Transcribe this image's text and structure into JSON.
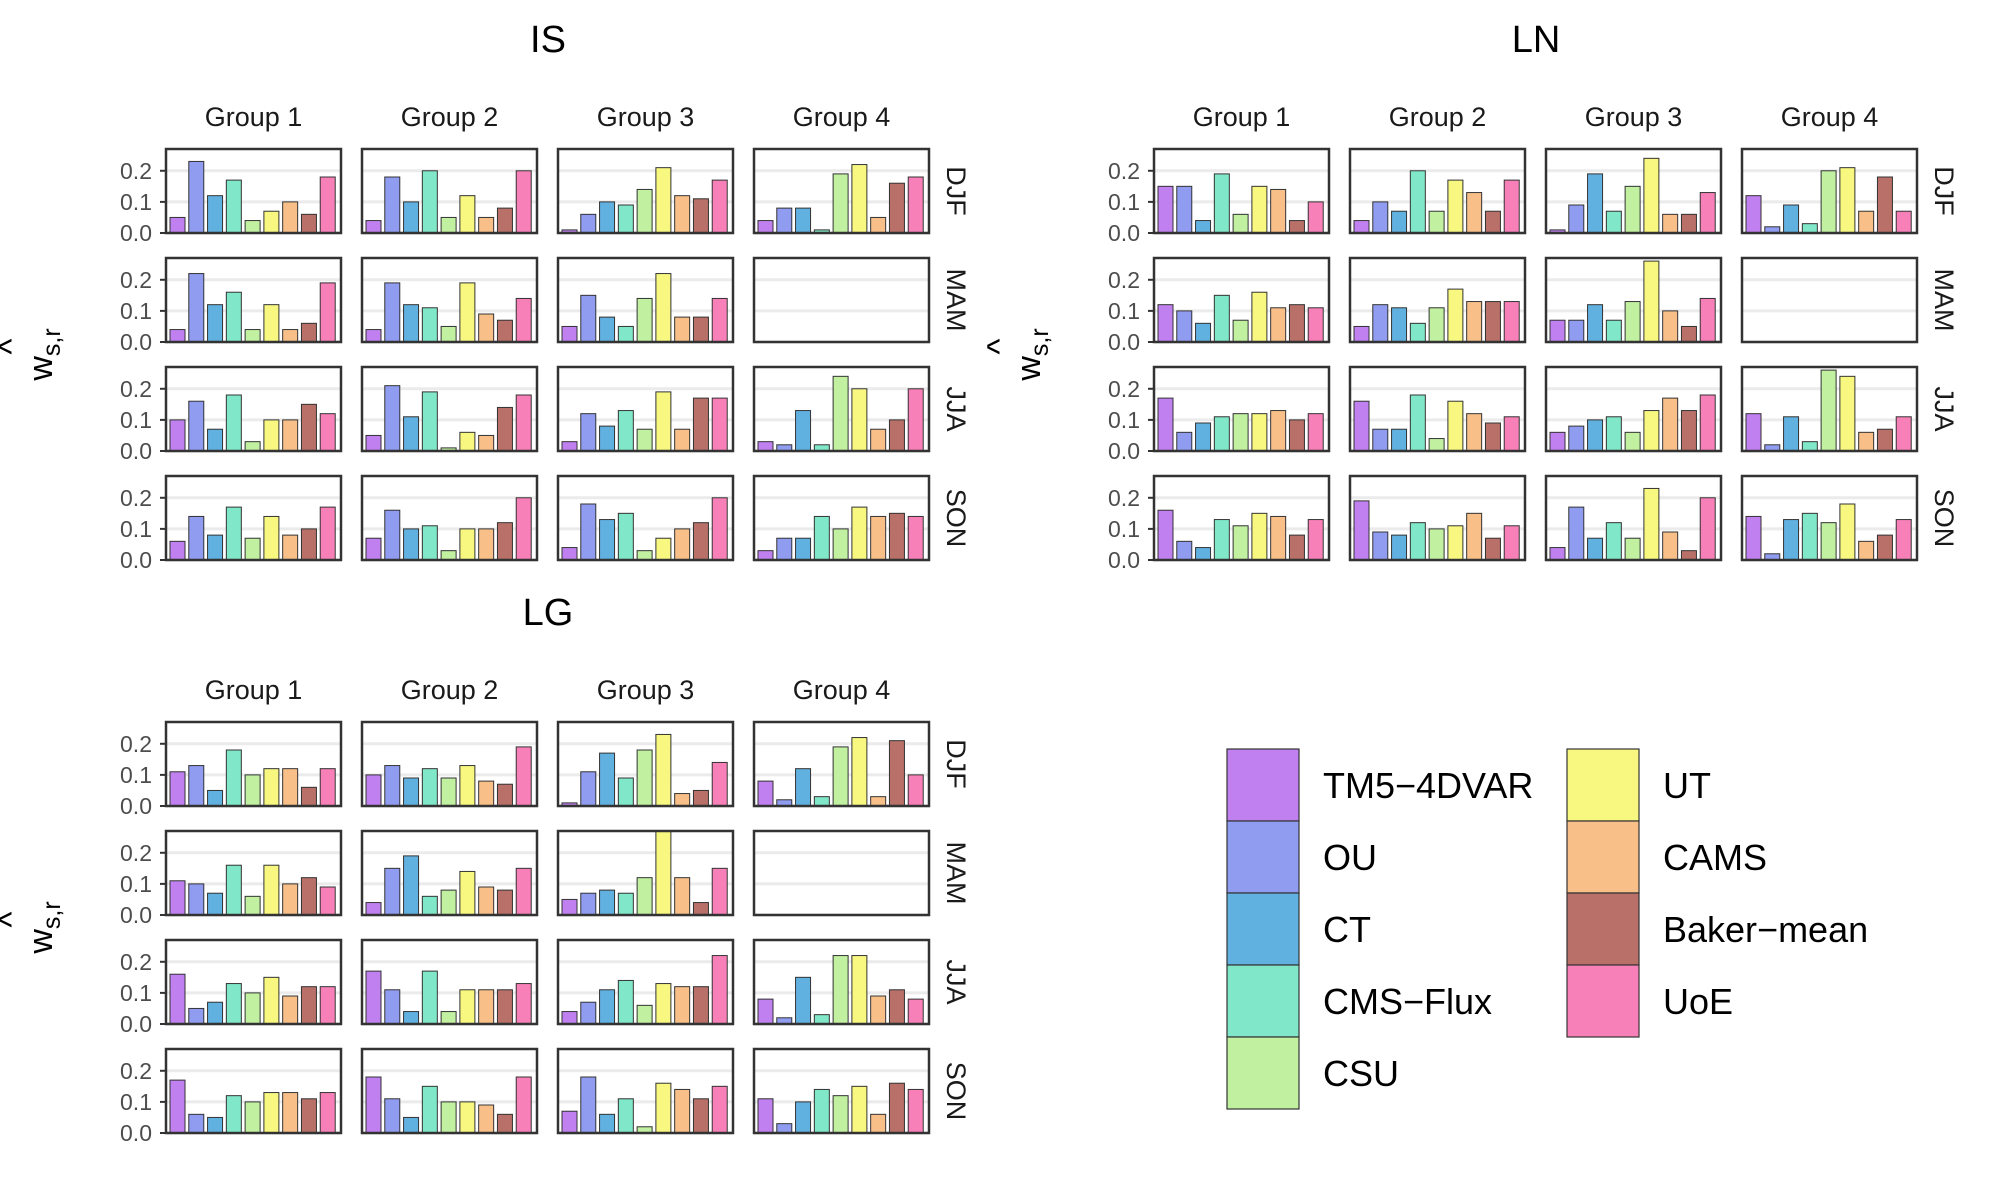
{
  "chart_data": {
    "type": "bar",
    "ylim": [
      0,
      0.27
    ],
    "yticks": [
      "0.0",
      "0.1",
      "0.2"
    ],
    "ytick_values": [
      0,
      0.1,
      0.2
    ],
    "ylabel": {
      "hat": "^",
      "main": "w",
      "sub": "s,r"
    },
    "groups": [
      "Group 1",
      "Group 2",
      "Group 3",
      "Group 4"
    ],
    "seasons": [
      "DJF",
      "MAM",
      "JJA",
      "SON"
    ],
    "models": [
      "TM5-4DVAR",
      "OU",
      "CT",
      "CMS-Flux",
      "CSU",
      "UT",
      "CAMS",
      "Baker-mean",
      "UoE"
    ],
    "legend_labels": [
      "TM5−4DVAR",
      "OU",
      "CT",
      "CMS−Flux",
      "CSU",
      "UT",
      "CAMS",
      "Baker−mean",
      "UoE"
    ],
    "colors": [
      "#c080f0",
      "#909cf0",
      "#60b0e0",
      "#80e8c8",
      "#c0f0a0",
      "#f8f880",
      "#f8c088",
      "#b87068",
      "#f880b8"
    ],
    "panels": [
      {
        "title": "IS",
        "weights": {
          "DJF": [
            [
              0.05,
              0.23,
              0.12,
              0.17,
              0.04,
              0.07,
              0.1,
              0.06,
              0.18
            ],
            [
              0.04,
              0.18,
              0.1,
              0.2,
              0.05,
              0.12,
              0.05,
              0.08,
              0.2
            ],
            [
              0.01,
              0.06,
              0.1,
              0.09,
              0.14,
              0.21,
              0.12,
              0.11,
              0.17
            ],
            [
              0.04,
              0.08,
              0.08,
              0.01,
              0.19,
              0.22,
              0.05,
              0.16,
              0.18
            ]
          ],
          "MAM": [
            [
              0.04,
              0.22,
              0.12,
              0.16,
              0.04,
              0.12,
              0.04,
              0.06,
              0.19
            ],
            [
              0.04,
              0.19,
              0.12,
              0.11,
              0.05,
              0.19,
              0.09,
              0.07,
              0.14
            ],
            [
              0.05,
              0.15,
              0.08,
              0.05,
              0.14,
              0.22,
              0.08,
              0.08,
              0.14
            ],
            null
          ],
          "JJA": [
            [
              0.1,
              0.16,
              0.07,
              0.18,
              0.03,
              0.1,
              0.1,
              0.15,
              0.12
            ],
            [
              0.05,
              0.21,
              0.11,
              0.19,
              0.01,
              0.06,
              0.05,
              0.14,
              0.18
            ],
            [
              0.03,
              0.12,
              0.08,
              0.13,
              0.07,
              0.19,
              0.07,
              0.17,
              0.17
            ],
            [
              0.03,
              0.02,
              0.13,
              0.02,
              0.24,
              0.2,
              0.07,
              0.1,
              0.2
            ]
          ],
          "SON": [
            [
              0.06,
              0.14,
              0.08,
              0.17,
              0.07,
              0.14,
              0.08,
              0.1,
              0.17
            ],
            [
              0.07,
              0.16,
              0.1,
              0.11,
              0.03,
              0.1,
              0.1,
              0.12,
              0.2
            ],
            [
              0.04,
              0.18,
              0.13,
              0.15,
              0.03,
              0.07,
              0.1,
              0.12,
              0.2
            ],
            [
              0.03,
              0.07,
              0.07,
              0.14,
              0.1,
              0.17,
              0.14,
              0.15,
              0.14
            ]
          ]
        }
      },
      {
        "title": "LN",
        "weights": {
          "DJF": [
            [
              0.15,
              0.15,
              0.04,
              0.19,
              0.06,
              0.15,
              0.14,
              0.04,
              0.1
            ],
            [
              0.04,
              0.1,
              0.07,
              0.2,
              0.07,
              0.17,
              0.13,
              0.07,
              0.17
            ],
            [
              0.01,
              0.09,
              0.19,
              0.07,
              0.15,
              0.24,
              0.06,
              0.06,
              0.13
            ],
            [
              0.12,
              0.02,
              0.09,
              0.03,
              0.2,
              0.21,
              0.07,
              0.18,
              0.07
            ]
          ],
          "MAM": [
            [
              0.12,
              0.1,
              0.06,
              0.15,
              0.07,
              0.16,
              0.11,
              0.12,
              0.11
            ],
            [
              0.05,
              0.12,
              0.11,
              0.06,
              0.11,
              0.17,
              0.13,
              0.13,
              0.13
            ],
            [
              0.07,
              0.07,
              0.12,
              0.07,
              0.13,
              0.26,
              0.1,
              0.05,
              0.14
            ],
            null
          ],
          "JJA": [
            [
              0.17,
              0.06,
              0.09,
              0.11,
              0.12,
              0.12,
              0.13,
              0.1,
              0.12
            ],
            [
              0.16,
              0.07,
              0.07,
              0.18,
              0.04,
              0.16,
              0.12,
              0.09,
              0.11
            ],
            [
              0.06,
              0.08,
              0.1,
              0.11,
              0.06,
              0.13,
              0.17,
              0.13,
              0.18
            ],
            [
              0.12,
              0.02,
              0.11,
              0.03,
              0.26,
              0.24,
              0.06,
              0.07,
              0.11
            ]
          ],
          "SON": [
            [
              0.16,
              0.06,
              0.04,
              0.13,
              0.11,
              0.15,
              0.14,
              0.08,
              0.13
            ],
            [
              0.19,
              0.09,
              0.08,
              0.12,
              0.1,
              0.11,
              0.15,
              0.07,
              0.11
            ],
            [
              0.04,
              0.17,
              0.07,
              0.12,
              0.07,
              0.23,
              0.09,
              0.03,
              0.2
            ],
            [
              0.14,
              0.02,
              0.13,
              0.15,
              0.12,
              0.18,
              0.06,
              0.08,
              0.13
            ]
          ]
        }
      },
      {
        "title": "LG",
        "weights": {
          "DJF": [
            [
              0.11,
              0.13,
              0.05,
              0.18,
              0.1,
              0.12,
              0.12,
              0.06,
              0.12
            ],
            [
              0.1,
              0.13,
              0.09,
              0.12,
              0.09,
              0.13,
              0.08,
              0.07,
              0.19
            ],
            [
              0.01,
              0.11,
              0.17,
              0.09,
              0.18,
              0.23,
              0.04,
              0.05,
              0.14
            ],
            [
              0.08,
              0.02,
              0.12,
              0.03,
              0.19,
              0.22,
              0.03,
              0.21,
              0.1
            ]
          ],
          "MAM": [
            [
              0.11,
              0.1,
              0.07,
              0.16,
              0.06,
              0.16,
              0.1,
              0.12,
              0.09
            ],
            [
              0.04,
              0.15,
              0.19,
              0.06,
              0.08,
              0.14,
              0.09,
              0.08,
              0.15
            ],
            [
              0.05,
              0.07,
              0.08,
              0.07,
              0.12,
              0.27,
              0.12,
              0.04,
              0.15
            ],
            null
          ],
          "JJA": [
            [
              0.16,
              0.05,
              0.07,
              0.13,
              0.1,
              0.15,
              0.09,
              0.12,
              0.12
            ],
            [
              0.17,
              0.11,
              0.04,
              0.17,
              0.04,
              0.11,
              0.11,
              0.11,
              0.13
            ],
            [
              0.04,
              0.07,
              0.11,
              0.14,
              0.06,
              0.13,
              0.12,
              0.12,
              0.22
            ],
            [
              0.08,
              0.02,
              0.15,
              0.03,
              0.22,
              0.22,
              0.09,
              0.11,
              0.08
            ]
          ],
          "SON": [
            [
              0.17,
              0.06,
              0.05,
              0.12,
              0.1,
              0.13,
              0.13,
              0.11,
              0.13
            ],
            [
              0.18,
              0.11,
              0.05,
              0.15,
              0.1,
              0.1,
              0.09,
              0.06,
              0.18
            ],
            [
              0.07,
              0.18,
              0.06,
              0.11,
              0.02,
              0.16,
              0.14,
              0.11,
              0.15
            ],
            [
              0.11,
              0.03,
              0.1,
              0.14,
              0.12,
              0.15,
              0.06,
              0.16,
              0.14
            ]
          ]
        }
      }
    ]
  }
}
